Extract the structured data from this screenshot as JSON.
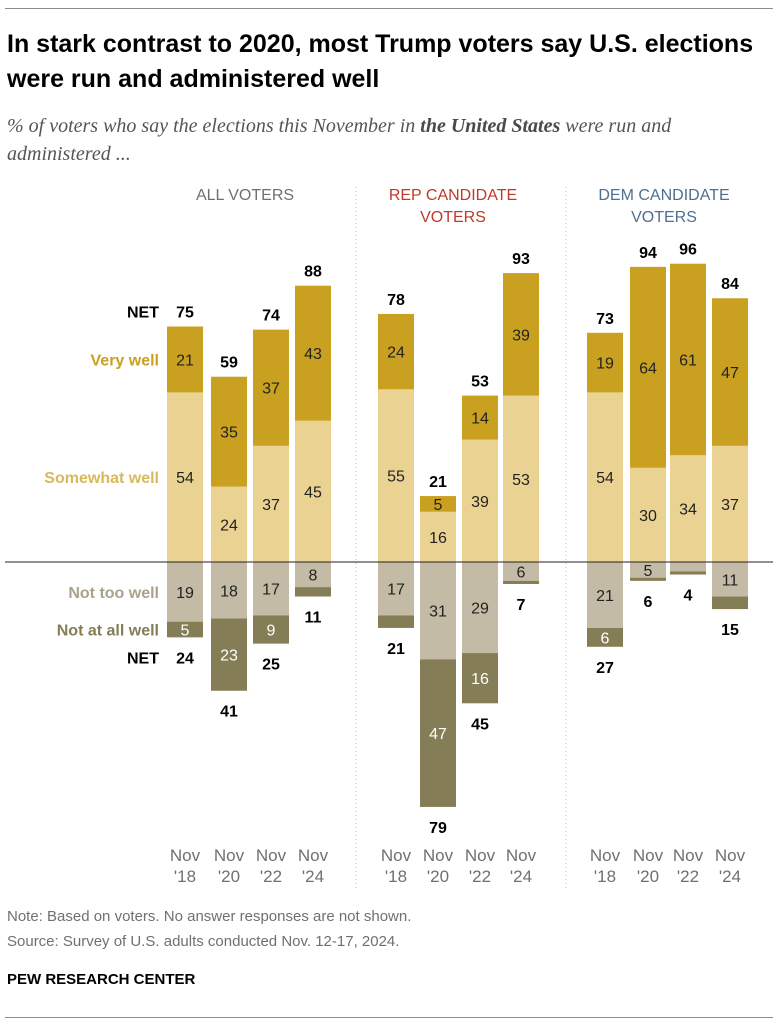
{
  "title": "In stark contrast to 2020, most Trump voters say U.S. elections were run and administered well",
  "subtitle": {
    "pre": "% of voters who say the elections this November in ",
    "bold": "the United States",
    "post": " were run and administered ..."
  },
  "note": "Note: Based on voters. No answer responses are not shown.",
  "source": "Source: Survey of U.S. adults conducted Nov. 12-17, 2024.",
  "brand": "PEW RESEARCH CENTER",
  "colors": {
    "very_well": "#c9a020",
    "somewhat_well": "#ead392",
    "not_too_well": "#c3bba5",
    "not_at_all_well": "#857d56",
    "all_header": "#707070",
    "rep_header": "#c0392b",
    "dem_header": "#4e6f8e",
    "divider": "#b5b5b5",
    "baseline": "#222222"
  },
  "chart_data": {
    "type": "bar",
    "subtype": "diverging-stacked",
    "categories": [
      "Nov '18",
      "Nov '20",
      "Nov '22",
      "Nov '24"
    ],
    "category_lines": [
      [
        "Nov",
        "'18"
      ],
      [
        "Nov",
        "'20"
      ],
      [
        "Nov",
        "'22"
      ],
      [
        "Nov",
        "'24"
      ]
    ],
    "segment_labels": {
      "net_positive": "NET",
      "very_well": "Very well",
      "somewhat_well": "Somewhat well",
      "not_too_well": "Not too well",
      "not_at_all_well": "Not at all well",
      "net_negative": "NET"
    },
    "groups": [
      {
        "name": "All voters",
        "header": [
          "ALL VOTERS"
        ],
        "very_well": [
          21,
          35,
          37,
          43
        ],
        "somewhat_well": [
          54,
          24,
          37,
          45
        ],
        "net_well": [
          75,
          59,
          74,
          88
        ],
        "not_too_well": [
          19,
          18,
          17,
          8
        ],
        "not_at_all_well": [
          5,
          23,
          9,
          3
        ],
        "not_at_all_well_labels": [
          "5",
          "23",
          "9",
          ""
        ],
        "net_not_well": [
          24,
          41,
          25,
          11
        ]
      },
      {
        "name": "Rep candidate voters",
        "header": [
          "REP CANDIDATE",
          "VOTERS"
        ],
        "very_well": [
          24,
          5,
          14,
          39
        ],
        "somewhat_well": [
          55,
          16,
          39,
          53
        ],
        "net_well": [
          78,
          21,
          53,
          93
        ],
        "not_too_well": [
          17,
          31,
          29,
          6
        ],
        "not_at_all_well": [
          4,
          47,
          16,
          1
        ],
        "not_at_all_well_labels": [
          "",
          "47",
          "16",
          ""
        ],
        "net_not_well": [
          21,
          79,
          45,
          7
        ]
      },
      {
        "name": "Dem candidate voters",
        "header": [
          "DEM CANDIDATE",
          "VOTERS"
        ],
        "very_well": [
          19,
          64,
          61,
          47
        ],
        "somewhat_well": [
          54,
          30,
          34,
          37
        ],
        "net_well": [
          73,
          94,
          96,
          84
        ],
        "not_too_well": [
          21,
          5,
          3,
          11
        ],
        "not_at_all_well": [
          6,
          1,
          1,
          4
        ],
        "not_at_all_well_labels": [
          "6",
          "",
          "",
          ""
        ],
        "not_too_well_labels": [
          "21",
          "5",
          "",
          "11"
        ],
        "net_not_well": [
          27,
          6,
          4,
          15
        ]
      }
    ]
  }
}
